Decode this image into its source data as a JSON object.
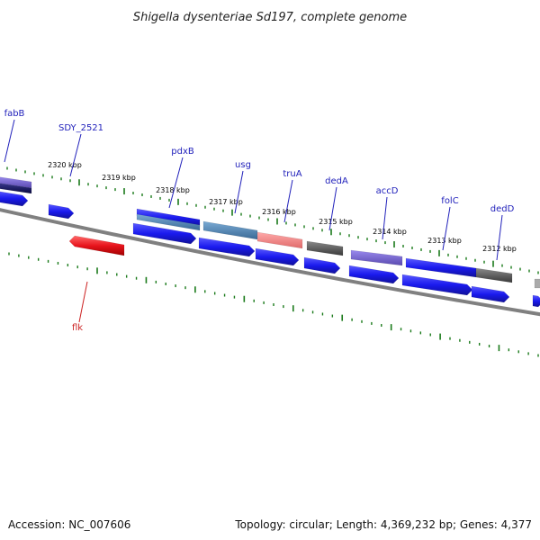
{
  "title": "Shigella dysenteriae Sd197, complete genome",
  "footer": {
    "accession": "Accession: NC_007606",
    "summary": "Topology: circular; Length: 4,369,232 bp; Genes: 4,377"
  },
  "colors": {
    "forward_cds": "#1a1aee",
    "reverse_cds": "#e8141c",
    "gene_label_forward": "#2222bb",
    "gene_label_reverse": "#cc2222",
    "tick": "#1a7a1a",
    "backbone": "#808080",
    "rna_blue": "#4a86b4",
    "rna_pink": "#f08080",
    "rna_purple": "#7766cc",
    "pseudo_gray": "#606060",
    "dark_navy": "#1a1a60"
  },
  "ticks": [
    {
      "label": "2320 kbp"
    },
    {
      "label": "2319 kbp"
    },
    {
      "label": "2318 kbp"
    },
    {
      "label": "2317 kbp"
    },
    {
      "label": "2316 kbp"
    },
    {
      "label": "2315 kbp"
    },
    {
      "label": "2314 kbp"
    },
    {
      "label": "2313 kbp"
    },
    {
      "label": "2312 kbp"
    }
  ],
  "gene_labels": [
    {
      "label": "fabB",
      "strand": "forward"
    },
    {
      "label": "SDY_2521",
      "strand": "forward"
    },
    {
      "label": "pdxB",
      "strand": "forward"
    },
    {
      "label": "usg",
      "strand": "forward"
    },
    {
      "label": "truA",
      "strand": "forward"
    },
    {
      "label": "dedA",
      "strand": "forward"
    },
    {
      "label": "accD",
      "strand": "forward"
    },
    {
      "label": "folC",
      "strand": "forward"
    },
    {
      "label": "dedD",
      "strand": "forward"
    },
    {
      "label": "flk",
      "strand": "reverse"
    }
  ]
}
